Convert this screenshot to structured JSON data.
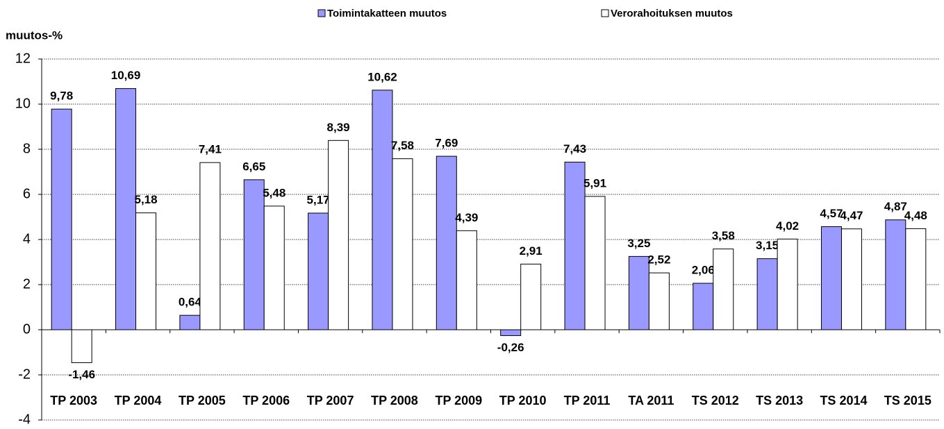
{
  "chart_data": {
    "type": "bar",
    "y_label": "muutos-%",
    "categories": [
      "TP 2003",
      "TP 2004",
      "TP 2005",
      "TP 2006",
      "TP 2007",
      "TP 2008",
      "TP 2009",
      "TP 2010",
      "TP 2011",
      "TA 2011",
      "TS 2012",
      "TS 2013",
      "TS 2014",
      "TS 2015"
    ],
    "series": [
      {
        "name": "Toimintakatteen muutos",
        "color": "#9999ff",
        "values": [
          9.78,
          10.69,
          0.64,
          6.65,
          5.17,
          10.62,
          7.69,
          -0.26,
          7.43,
          3.25,
          2.06,
          3.15,
          4.57,
          4.87
        ],
        "value_labels": [
          "9,78",
          "10,69",
          "0,64",
          "6,65",
          "5,17",
          "10,62",
          "7,69",
          "-0,26",
          "7,43",
          "3,25",
          "2,06",
          "3,15",
          "4,57",
          "4,87"
        ]
      },
      {
        "name": "Verorahoituksen muutos",
        "color": "#ffffff",
        "values": [
          -1.46,
          5.18,
          7.41,
          5.48,
          8.39,
          7.58,
          4.39,
          2.91,
          5.91,
          2.52,
          3.58,
          4.02,
          4.47,
          4.48
        ],
        "value_labels": [
          "-1,46",
          "5,18",
          "7,41",
          "5,48",
          "8,39",
          "7,58",
          "4,39",
          "2,91",
          "5,91",
          "2,52",
          "3,58",
          "4,02",
          "4,47",
          "4,48"
        ]
      }
    ],
    "ylim": [
      -4,
      12
    ],
    "yticks": [
      -4,
      -2,
      0,
      2,
      4,
      6,
      8,
      10,
      12
    ],
    "grid": true,
    "legend": "top"
  }
}
